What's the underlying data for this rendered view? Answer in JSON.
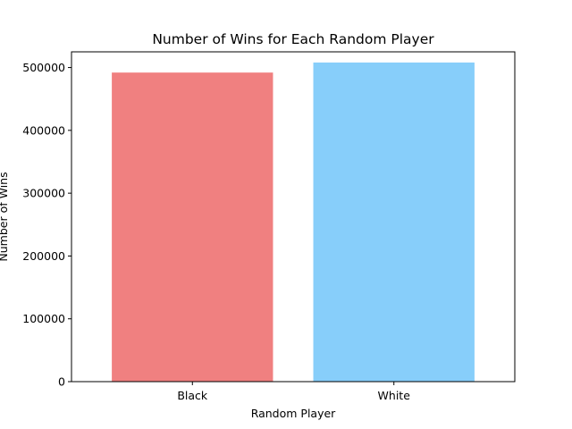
{
  "chart_data": {
    "type": "bar",
    "title": "Number of Wins for Each Random Player",
    "xlabel": "Random Player",
    "ylabel": "Number of Wins",
    "categories": [
      "Black",
      "White"
    ],
    "values": [
      492000,
      508000
    ],
    "colors": [
      "#f08080",
      "#87cefa"
    ],
    "ylim": [
      0,
      525000
    ],
    "yticks": [
      0,
      100000,
      200000,
      300000,
      400000,
      500000
    ],
    "ytick_labels": [
      "0",
      "100000",
      "200000",
      "300000",
      "400000",
      "500000"
    ],
    "grid": false,
    "legend": false
  }
}
